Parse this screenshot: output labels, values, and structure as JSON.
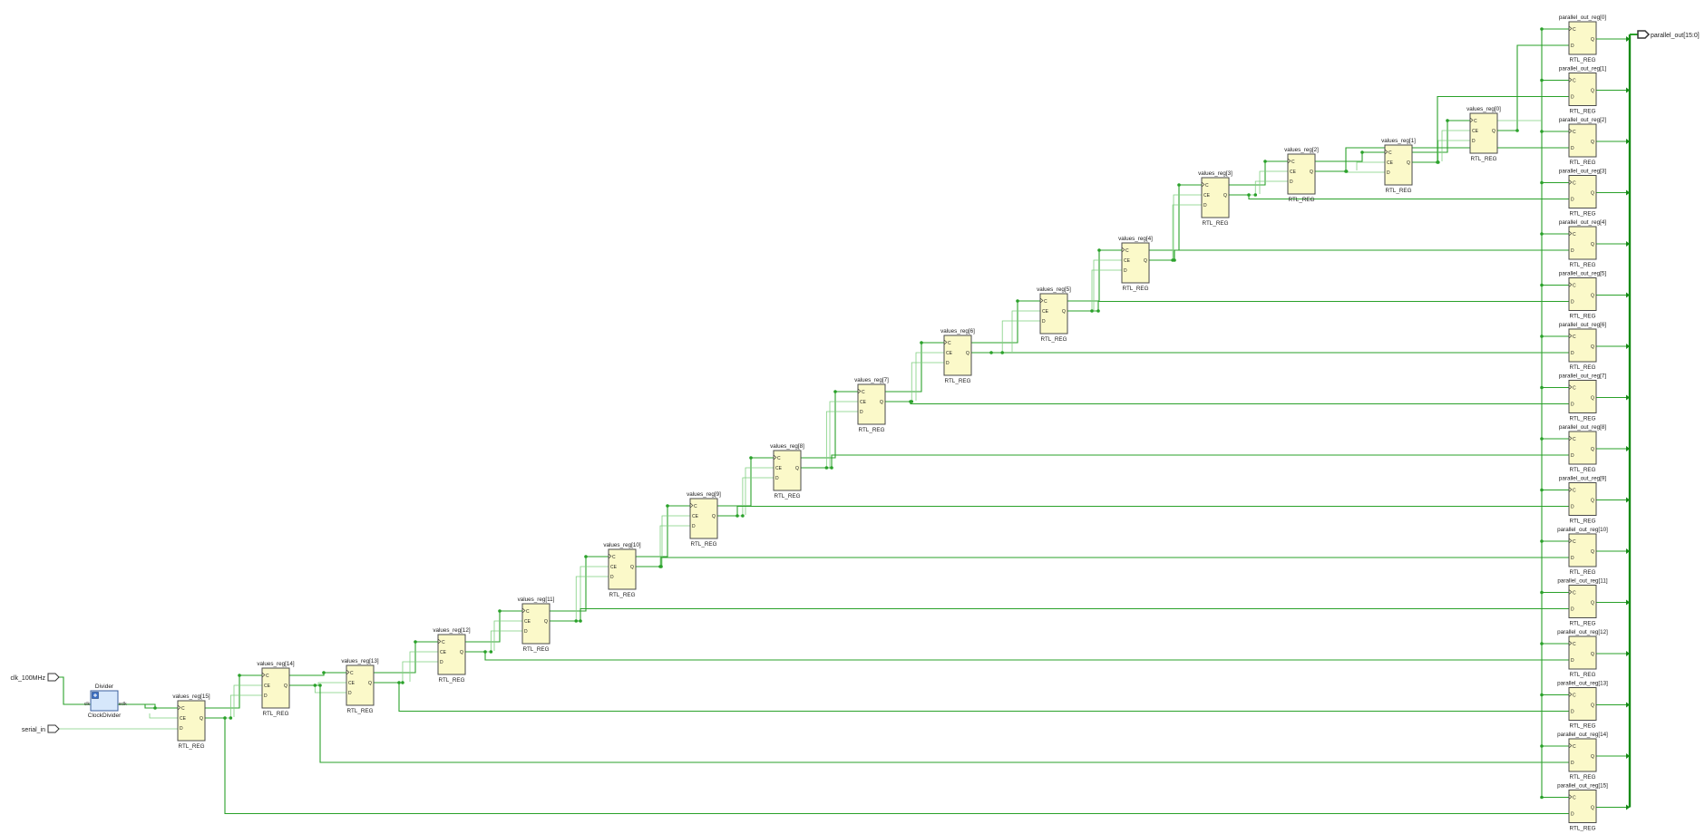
{
  "ports": {
    "clk_label": "clk_100MHz",
    "serial_label": "serial_in",
    "out_label": "parallel_out[15:0]"
  },
  "divider": {
    "instance": "Divider",
    "module": "ClockDivider",
    "pin_in": "clk",
    "pin_out": "sclk"
  },
  "reg_type": "RTL_REG",
  "pins": {
    "c": "C",
    "ce": "CE",
    "d": "D",
    "q": "Q"
  },
  "values_regs": [
    "values_reg[0]",
    "values_reg[1]",
    "values_reg[2]",
    "values_reg[3]",
    "values_reg[4]",
    "values_reg[5]",
    "values_reg[6]",
    "values_reg[7]",
    "values_reg[8]",
    "values_reg[9]",
    "values_reg[10]",
    "values_reg[11]",
    "values_reg[12]",
    "values_reg[13]",
    "values_reg[14]",
    "values_reg[15]"
  ],
  "out_regs": [
    "parallel_out_reg[0]",
    "parallel_out_reg[1]",
    "parallel_out_reg[2]",
    "parallel_out_reg[3]",
    "parallel_out_reg[4]",
    "parallel_out_reg[5]",
    "parallel_out_reg[6]",
    "parallel_out_reg[7]",
    "parallel_out_reg[8]",
    "parallel_out_reg[9]",
    "parallel_out_reg[10]",
    "parallel_out_reg[11]",
    "parallel_out_reg[12]",
    "parallel_out_reg[13]",
    "parallel_out_reg[14]",
    "parallel_out_reg[15]"
  ],
  "colors": {
    "wire": "#2aa12a",
    "wire_light": "#7fcf7f",
    "reg_fill": "#fbf9c9",
    "reg_border": "#4a4a4a",
    "divider_fill": "#d6e7fb",
    "divider_border": "#3b5f9c",
    "bus": "#158a15"
  }
}
